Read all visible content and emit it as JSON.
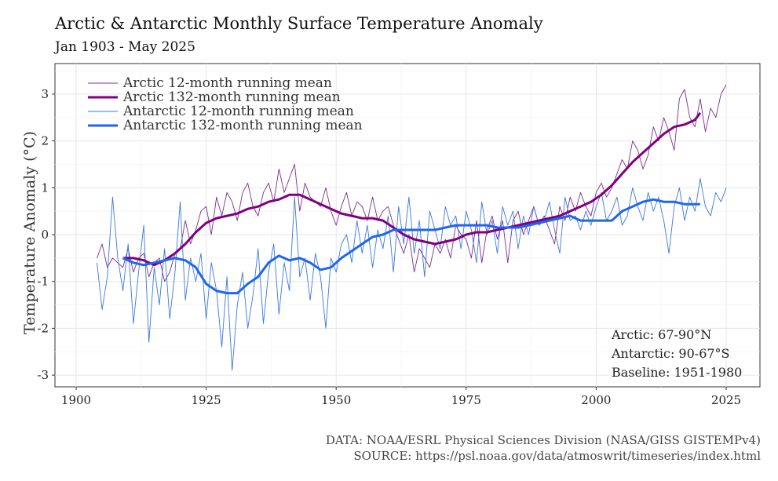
{
  "chart_data": {
    "type": "line",
    "title": "Arctic & Antarctic Monthly Surface Temperature Anomaly",
    "subtitle": "Jan 1903 - May 2025",
    "xlabel": "",
    "ylabel": "Temperature Anomaly (°C)",
    "xlim": [
      1900,
      2025
    ],
    "ylim": [
      -3.1,
      3.6
    ],
    "x_ticks": [
      1900,
      1925,
      1950,
      1975,
      2000,
      2025
    ],
    "y_ticks": [
      -3,
      -2,
      -1,
      0,
      1,
      2,
      3
    ],
    "grid": true,
    "legend_position": "top-left",
    "colors": {
      "arctic_thin": "#7b2d8e",
      "arctic_thick": "#800080",
      "antarctic_thin": "#3a78e0",
      "antarctic_thick": "#1f66ee"
    },
    "series": [
      {
        "name": "Arctic 12-month running mean",
        "x": [
          1904,
          1905,
          1906,
          1907,
          1908,
          1909,
          1910,
          1911,
          1912,
          1913,
          1914,
          1915,
          1916,
          1917,
          1918,
          1919,
          1920,
          1921,
          1922,
          1923,
          1924,
          1925,
          1926,
          1927,
          1928,
          1929,
          1930,
          1931,
          1932,
          1933,
          1934,
          1935,
          1936,
          1937,
          1938,
          1939,
          1940,
          1941,
          1942,
          1943,
          1944,
          1945,
          1946,
          1947,
          1948,
          1949,
          1950,
          1951,
          1952,
          1953,
          1954,
          1955,
          1956,
          1957,
          1958,
          1959,
          1960,
          1961,
          1962,
          1963,
          1964,
          1965,
          1966,
          1967,
          1968,
          1969,
          1970,
          1971,
          1972,
          1973,
          1974,
          1975,
          1976,
          1977,
          1978,
          1979,
          1980,
          1981,
          1982,
          1983,
          1984,
          1985,
          1986,
          1987,
          1988,
          1989,
          1990,
          1991,
          1992,
          1993,
          1994,
          1995,
          1996,
          1997,
          1998,
          1999,
          2000,
          2001,
          2002,
          2003,
          2004,
          2005,
          2006,
          2007,
          2008,
          2009,
          2010,
          2011,
          2012,
          2013,
          2014,
          2015,
          2016,
          2017,
          2018,
          2019,
          2020,
          2021,
          2022,
          2023,
          2024,
          2025
        ],
        "values": [
          -0.5,
          -0.2,
          -0.7,
          -0.5,
          -0.6,
          -0.7,
          -0.3,
          -0.8,
          -0.5,
          -0.4,
          -0.9,
          -0.6,
          -0.5,
          -1.0,
          -0.8,
          -0.4,
          -0.3,
          0.3,
          -0.2,
          0.1,
          0.5,
          0.6,
          0.0,
          0.8,
          0.4,
          0.9,
          0.7,
          0.3,
          0.9,
          1.1,
          0.6,
          0.4,
          0.9,
          1.1,
          0.7,
          1.4,
          0.9,
          1.2,
          1.5,
          0.5,
          1.1,
          0.8,
          0.7,
          0.6,
          1.0,
          0.5,
          0.2,
          0.6,
          0.9,
          0.4,
          0.7,
          0.6,
          0.3,
          0.8,
          0.3,
          0.5,
          0.6,
          0.2,
          -0.1,
          -0.4,
          0.0,
          -0.8,
          -0.3,
          -0.5,
          -0.7,
          -0.2,
          -0.4,
          -0.1,
          -0.5,
          0.2,
          0.0,
          -0.1,
          -0.5,
          0.3,
          -0.6,
          0.1,
          0.4,
          -0.1,
          0.3,
          -0.6,
          0.3,
          0.5,
          0.0,
          0.3,
          0.6,
          0.2,
          0.4,
          0.1,
          -0.2,
          0.6,
          0.3,
          0.8,
          0.5,
          0.9,
          0.6,
          0.4,
          0.9,
          1.1,
          0.8,
          1.0,
          1.3,
          1.6,
          1.4,
          2.0,
          1.8,
          1.4,
          1.7,
          2.3,
          2.0,
          2.5,
          2.2,
          1.8,
          2.9,
          3.1,
          2.5,
          2.3,
          2.9,
          2.2,
          2.7,
          2.5,
          3.0,
          3.2
        ]
      },
      {
        "name": "Arctic 132-month running mean",
        "x": [
          1909,
          1911,
          1913,
          1915,
          1917,
          1919,
          1921,
          1923,
          1925,
          1927,
          1929,
          1931,
          1933,
          1935,
          1937,
          1939,
          1941,
          1943,
          1945,
          1947,
          1949,
          1951,
          1953,
          1955,
          1957,
          1959,
          1961,
          1963,
          1965,
          1967,
          1969,
          1971,
          1973,
          1975,
          1977,
          1979,
          1981,
          1983,
          1985,
          1987,
          1989,
          1991,
          1993,
          1995,
          1997,
          1999,
          2001,
          2003,
          2005,
          2007,
          2009,
          2011,
          2013,
          2015,
          2017,
          2019,
          2020
        ],
        "values": [
          -0.5,
          -0.5,
          -0.55,
          -0.65,
          -0.55,
          -0.4,
          -0.2,
          0.05,
          0.25,
          0.35,
          0.4,
          0.45,
          0.55,
          0.6,
          0.7,
          0.75,
          0.85,
          0.85,
          0.75,
          0.65,
          0.55,
          0.45,
          0.4,
          0.35,
          0.35,
          0.3,
          0.15,
          0.0,
          -0.1,
          -0.15,
          -0.2,
          -0.15,
          -0.1,
          0.0,
          0.05,
          0.05,
          0.1,
          0.15,
          0.2,
          0.25,
          0.3,
          0.35,
          0.4,
          0.5,
          0.6,
          0.7,
          0.85,
          1.05,
          1.3,
          1.55,
          1.75,
          1.95,
          2.15,
          2.3,
          2.35,
          2.45,
          2.6
        ]
      },
      {
        "name": "Antarctic 12-month running mean",
        "x": [
          1904,
          1905,
          1906,
          1907,
          1908,
          1909,
          1910,
          1911,
          1912,
          1913,
          1914,
          1915,
          1916,
          1917,
          1918,
          1919,
          1920,
          1921,
          1922,
          1923,
          1924,
          1925,
          1926,
          1927,
          1928,
          1929,
          1930,
          1931,
          1932,
          1933,
          1934,
          1935,
          1936,
          1937,
          1938,
          1939,
          1940,
          1941,
          1942,
          1943,
          1944,
          1945,
          1946,
          1947,
          1948,
          1949,
          1950,
          1951,
          1952,
          1953,
          1954,
          1955,
          1956,
          1957,
          1958,
          1959,
          1960,
          1961,
          1962,
          1963,
          1964,
          1965,
          1966,
          1967,
          1968,
          1969,
          1970,
          1971,
          1972,
          1973,
          1974,
          1975,
          1976,
          1977,
          1978,
          1979,
          1980,
          1981,
          1982,
          1983,
          1984,
          1985,
          1986,
          1987,
          1988,
          1989,
          1990,
          1991,
          1992,
          1993,
          1994,
          1995,
          1996,
          1997,
          1998,
          1999,
          2000,
          2001,
          2002,
          2003,
          2004,
          2005,
          2006,
          2007,
          2008,
          2009,
          2010,
          2011,
          2012,
          2013,
          2014,
          2015,
          2016,
          2017,
          2018,
          2019,
          2020,
          2021,
          2022,
          2023,
          2024,
          2025
        ],
        "values": [
          -0.6,
          -1.6,
          -0.9,
          0.8,
          -0.5,
          -1.2,
          -0.2,
          -1.9,
          -0.8,
          0.2,
          -2.3,
          -0.7,
          -1.5,
          -0.3,
          -1.8,
          -0.8,
          0.7,
          -1.4,
          -0.5,
          -1.0,
          -0.4,
          -1.8,
          -0.6,
          -1.2,
          -2.4,
          -0.9,
          -2.9,
          -1.5,
          -0.8,
          -2.0,
          -1.3,
          -0.3,
          -1.9,
          -0.8,
          -0.2,
          -1.7,
          -0.6,
          -1.2,
          0.8,
          -0.9,
          -0.5,
          -1.4,
          -0.4,
          -0.9,
          -2.0,
          -0.5,
          -0.8,
          -0.2,
          0.0,
          -0.6,
          0.3,
          -0.4,
          0.2,
          -0.7,
          0.1,
          -0.3,
          0.4,
          -0.8,
          0.6,
          -0.2,
          0.8,
          -0.4,
          0.3,
          -0.9,
          0.5,
          0.1,
          -0.3,
          0.6,
          0.2,
          0.4,
          -0.3,
          0.5,
          0.1,
          -0.6,
          0.7,
          0.0,
          0.3,
          -0.4,
          0.6,
          0.2,
          0.5,
          -0.3,
          0.4,
          0.0,
          0.6,
          0.2,
          0.3,
          0.7,
          0.1,
          -0.4,
          0.8,
          0.3,
          0.4,
          0.1,
          0.5,
          0.2,
          0.6,
          0.9,
          0.3,
          0.5,
          0.8,
          0.2,
          0.4,
          1.0,
          0.6,
          0.3,
          0.9,
          0.5,
          0.8,
          0.3,
          -0.4,
          0.6,
          1.0,
          0.3,
          0.8,
          0.5,
          1.2,
          0.6,
          0.4,
          0.9,
          0.7,
          1.0
        ]
      },
      {
        "name": "Antarctic 132-month running mean",
        "x": [
          1909,
          1911,
          1913,
          1915,
          1917,
          1919,
          1921,
          1923,
          1925,
          1927,
          1929,
          1931,
          1933,
          1935,
          1937,
          1939,
          1941,
          1943,
          1945,
          1947,
          1949,
          1951,
          1953,
          1955,
          1957,
          1959,
          1961,
          1963,
          1965,
          1967,
          1969,
          1971,
          1973,
          1975,
          1977,
          1979,
          1981,
          1983,
          1985,
          1987,
          1989,
          1991,
          1993,
          1995,
          1997,
          1999,
          2001,
          2003,
          2005,
          2007,
          2009,
          2011,
          2013,
          2015,
          2017,
          2019,
          2020
        ],
        "values": [
          -0.5,
          -0.6,
          -0.65,
          -0.6,
          -0.55,
          -0.5,
          -0.55,
          -0.7,
          -1.05,
          -1.2,
          -1.25,
          -1.25,
          -1.05,
          -0.9,
          -0.6,
          -0.45,
          -0.55,
          -0.5,
          -0.6,
          -0.75,
          -0.7,
          -0.5,
          -0.35,
          -0.2,
          -0.05,
          0.0,
          0.1,
          0.1,
          0.1,
          0.1,
          0.1,
          0.15,
          0.2,
          0.2,
          0.2,
          0.2,
          0.15,
          0.15,
          0.15,
          0.2,
          0.25,
          0.3,
          0.35,
          0.4,
          0.3,
          0.3,
          0.3,
          0.3,
          0.5,
          0.6,
          0.7,
          0.75,
          0.7,
          0.7,
          0.65,
          0.65,
          0.65
        ]
      }
    ],
    "annotations": [
      "Arctic: 67-90°N",
      "Antarctic: 90-67°S",
      "Baseline: 1951-1980"
    ]
  },
  "credits": {
    "data": "DATA: NOAA/ESRL Physical Sciences Division (NASA/GISS GISTEMPv4)",
    "source": "SOURCE: https://psl.noaa.gov/data/atmoswrit/timeseries/index.html"
  }
}
